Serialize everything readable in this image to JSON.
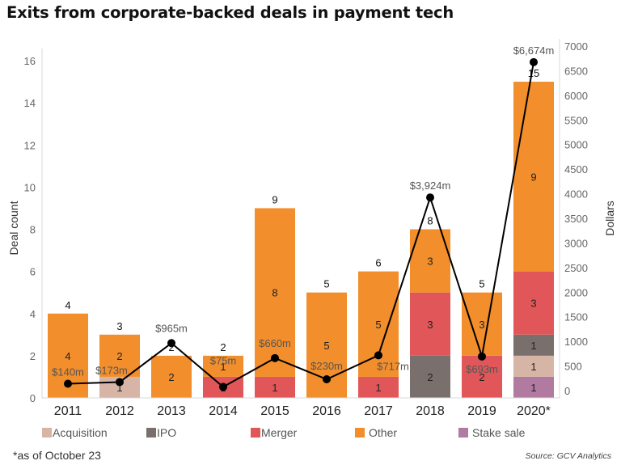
{
  "chart_data": {
    "type": "bar",
    "stacked": true,
    "title": "Exits from corporate-backed deals in payment tech",
    "categories": [
      "2011",
      "2012",
      "2013",
      "2014",
      "2015",
      "2016",
      "2017",
      "2018",
      "2019",
      "2020*"
    ],
    "ylabel": "Deal count",
    "ylabel_right": "Dollars",
    "ylim": [
      0,
      16.5
    ],
    "yticks": [
      0,
      2,
      4,
      6,
      8,
      10,
      12,
      14,
      16
    ],
    "ylim_right": [
      0,
      7000
    ],
    "yticks_right": [
      0,
      500,
      1000,
      1500,
      2000,
      2500,
      3000,
      3500,
      4000,
      4500,
      5000,
      5500,
      6000,
      6500,
      7000
    ],
    "grid": false,
    "legend_position": "bottom",
    "series": [
      {
        "name": "Stake sale",
        "color": "#b07aa1",
        "values": [
          0,
          0,
          0,
          0,
          0,
          0,
          0,
          0,
          0,
          1
        ]
      },
      {
        "name": "Acquisition",
        "color": "#d7b5a6",
        "values": [
          0,
          1,
          0,
          0,
          0,
          0,
          0,
          0,
          0,
          1
        ]
      },
      {
        "name": "IPO",
        "color": "#79706e",
        "values": [
          0,
          0,
          0,
          0,
          0,
          0,
          0,
          2,
          0,
          1
        ]
      },
      {
        "name": "Merger",
        "color": "#e15759",
        "values": [
          0,
          0,
          0,
          1,
          1,
          0,
          1,
          3,
          2,
          3
        ]
      },
      {
        "name": "Other",
        "color": "#f28e2b",
        "values": [
          4,
          2,
          2,
          1,
          8,
          5,
          5,
          3,
          3,
          9
        ]
      }
    ],
    "totals": [
      4,
      3,
      2,
      2,
      9,
      5,
      6,
      8,
      5,
      15
    ],
    "line_series": {
      "name": "Dollars",
      "axis": "right",
      "color": "#000000",
      "values": [
        140,
        173,
        965,
        75,
        660,
        230,
        717,
        3924,
        693,
        6674
      ],
      "labels": [
        "$140m",
        "$173m",
        "$965m",
        "$75m",
        "$660m",
        "$230m",
        "$717m",
        "$3,924m",
        "$693m",
        "$6,674m"
      ]
    },
    "legend_order": [
      "Acquisition",
      "IPO",
      "Merger",
      "Other",
      "Stake sale"
    ]
  },
  "footnote": "*as of October 23",
  "source": "Source: GCV Analytics"
}
